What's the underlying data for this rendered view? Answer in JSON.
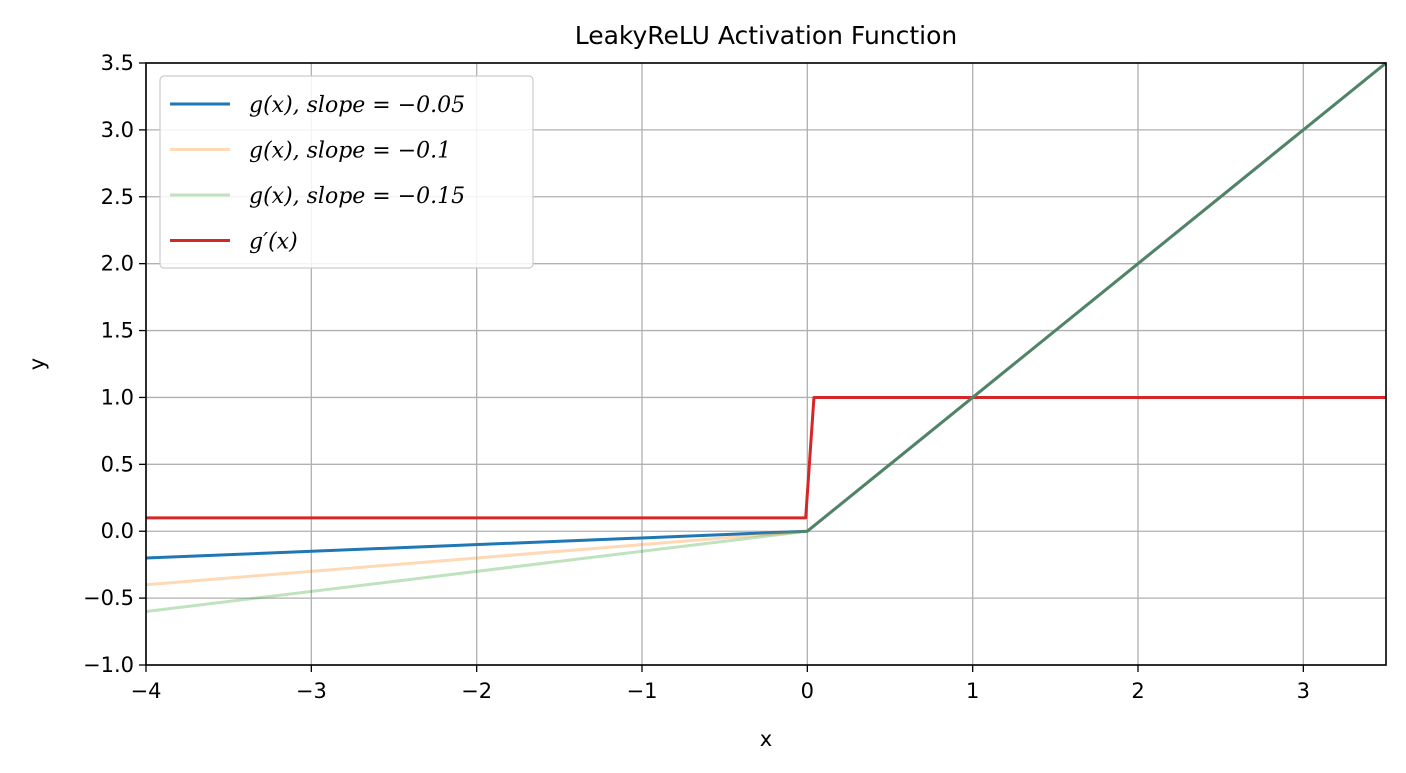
{
  "chart_data": {
    "type": "line",
    "title": "LeakyReLU Activation Function",
    "xlabel": "x",
    "ylabel": "y",
    "xlim": [
      -4,
      3.5
    ],
    "ylim": [
      -1.0,
      3.5
    ],
    "xticks": [
      -4,
      -3,
      -2,
      -1,
      0,
      1,
      2,
      3
    ],
    "xtick_labels": [
      "−4",
      "−3",
      "−2",
      "−1",
      "0",
      "1",
      "2",
      "3"
    ],
    "yticks": [
      -1.0,
      -0.5,
      0.0,
      0.5,
      1.0,
      1.5,
      2.0,
      2.5,
      3.0,
      3.5
    ],
    "ytick_labels": [
      "−1.0",
      "−0.5",
      "0.0",
      "0.5",
      "1.0",
      "1.5",
      "2.0",
      "2.5",
      "3.0",
      "3.5"
    ],
    "grid": true,
    "legend_position": "top-left",
    "series": [
      {
        "name": "g(x), slope = −0.05",
        "color": "#1f77b4",
        "opacity": 1.0,
        "x": [
          -4,
          0,
          3.5
        ],
        "y": [
          -0.2,
          0,
          3.5
        ]
      },
      {
        "name": "g(x), slope = −0.1",
        "color": "#ff7f0e",
        "opacity": 0.3,
        "x": [
          -4,
          0,
          3.5
        ],
        "y": [
          -0.4,
          0,
          3.5
        ]
      },
      {
        "name": "g(x), slope = −0.15",
        "color": "#2ca02c",
        "opacity": 0.3,
        "x": [
          -4,
          0,
          3.5
        ],
        "y": [
          -0.6,
          0,
          3.5
        ]
      },
      {
        "name": "g′(x)",
        "color": "#d62728",
        "opacity": 1.0,
        "x": [
          -4,
          -0.01,
          0.04,
          3.5
        ],
        "y": [
          0.1,
          0.1,
          1.0,
          1.0
        ]
      }
    ]
  }
}
